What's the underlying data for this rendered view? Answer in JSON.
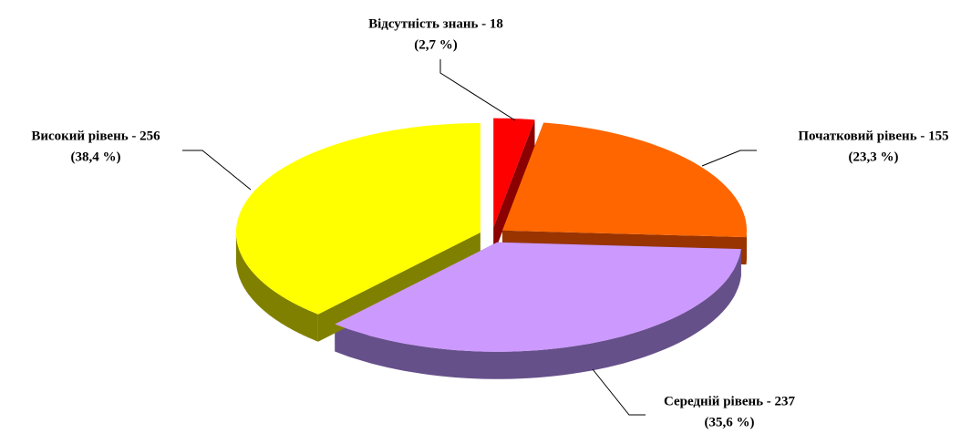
{
  "chart_data": {
    "type": "pie3d",
    "categories": [
      "Відсутність знань",
      "Початковий рівень",
      "Середній рівень",
      "Високий рівень"
    ],
    "values": [
      18,
      155,
      237,
      256
    ],
    "value_labels": [
      "Відсутність знань - 18",
      "Початковий рівень - 155",
      "Середній рівень - 237",
      "Високий рівень - 256"
    ],
    "percents": [
      2.7,
      23.3,
      35.6,
      38.4
    ],
    "percent_labels": [
      "(2,7 %)",
      "(23,3 %)",
      "(35,6 %)",
      "(38,4 %)"
    ],
    "colors": [
      "#ff0000",
      "#ff6600",
      "#cc99ff",
      "#ffff00"
    ],
    "side_colors": [
      "#8b0000",
      "#993300",
      "#66508a",
      "#808000"
    ]
  }
}
